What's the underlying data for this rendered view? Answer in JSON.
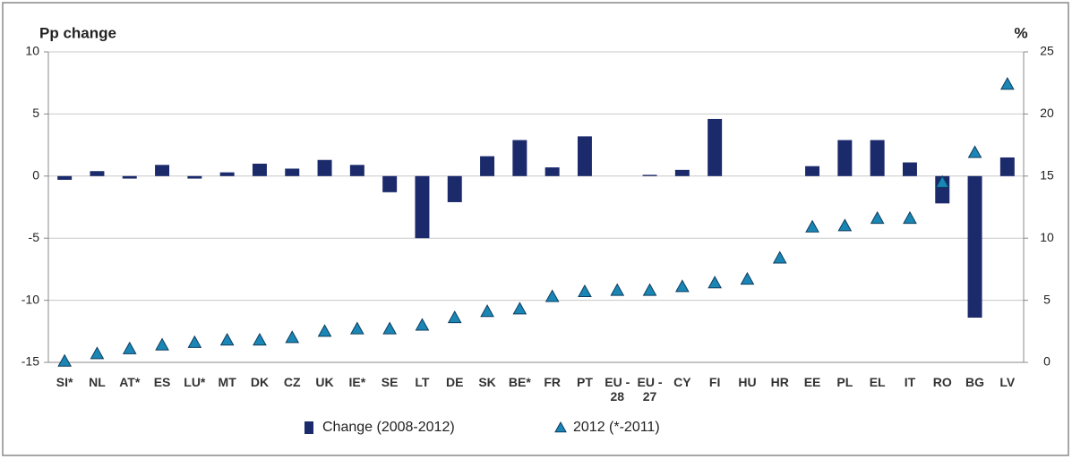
{
  "chart_data": {
    "type": "bar",
    "y_label": "Pp change",
    "y2_label": "%",
    "categories": [
      "SI*",
      "NL",
      "AT*",
      "ES",
      "LU*",
      "MT",
      "DK",
      "CZ",
      "UK",
      "IE*",
      "SE",
      "LT",
      "DE",
      "SK",
      "BE*",
      "FR",
      "PT",
      "EU - 28",
      "EU - 27",
      "CY",
      "FI",
      "HU",
      "HR",
      "EE",
      "PL",
      "EL",
      "IT",
      "RO",
      "BG",
      "LV"
    ],
    "series": [
      {
        "name": "Change (2008-2012)",
        "type": "bar",
        "color": "#1b2a6b",
        "values": [
          -0.3,
          0.4,
          -0.2,
          0.9,
          -0.2,
          0.3,
          1.0,
          0.6,
          1.3,
          0.9,
          -1.3,
          -5.0,
          -2.1,
          1.6,
          2.9,
          0.7,
          3.2,
          0,
          0.1,
          0.5,
          4.6,
          0,
          null,
          0.8,
          2.9,
          2.9,
          1.1,
          -2.2,
          -11.4,
          1.5
        ]
      },
      {
        "name": "2012 (*-2011)",
        "type": "triangle",
        "axis": "y2",
        "color": "#1a86b5",
        "values": [
          0.1,
          0.7,
          1.1,
          1.4,
          1.6,
          1.8,
          1.8,
          2.0,
          2.5,
          2.7,
          2.7,
          3.0,
          3.6,
          4.1,
          4.3,
          5.3,
          5.7,
          5.8,
          5.8,
          6.1,
          6.4,
          6.7,
          8.4,
          10.9,
          11.0,
          11.6,
          11.6,
          14.5,
          16.9,
          22.4
        ]
      }
    ],
    "ylim": [
      -15,
      10
    ],
    "yticks": [
      -15,
      -10,
      -5,
      0,
      5,
      10
    ],
    "y2lim": [
      0,
      25
    ],
    "y2ticks": [
      0,
      5,
      10,
      15,
      20,
      25
    ],
    "grid": true
  }
}
